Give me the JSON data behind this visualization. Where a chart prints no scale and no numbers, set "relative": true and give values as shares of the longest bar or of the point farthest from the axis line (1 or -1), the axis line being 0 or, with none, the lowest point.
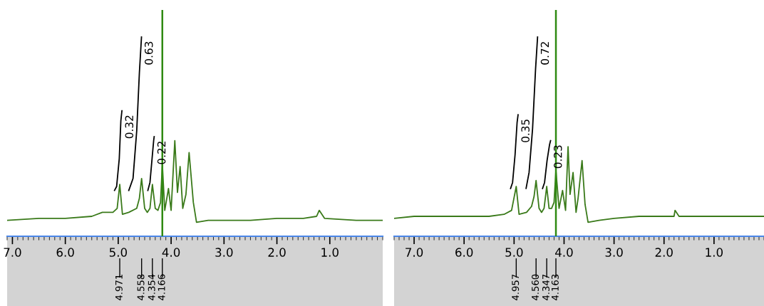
{
  "chart_data": [
    {
      "type": "line",
      "relative": true,
      "xlim": [
        7.1,
        0.0
      ],
      "xticks": [
        {
          "value": 7,
          "label": "7.0"
        },
        {
          "value": 6,
          "label": "6.0"
        },
        {
          "value": 5,
          "label": "5.0"
        },
        {
          "value": 4,
          "label": "4.0"
        },
        {
          "value": 3,
          "label": "3.0"
        },
        {
          "value": 2,
          "label": "2.0"
        },
        {
          "value": 1,
          "label": "1.0"
        }
      ],
      "tick_labels": "x",
      "grid": false,
      "legend": false,
      "ref_lines": [
        {
          "axis": "x",
          "value": 4.166,
          "color": "#2f8a12"
        }
      ],
      "series": [
        {
          "color": "#3a7a1a",
          "x": [
            7.1,
            6.5,
            6.0,
            5.5,
            5.3,
            5.1,
            5.02,
            4.971,
            4.92,
            4.8,
            4.65,
            4.6,
            4.558,
            4.5,
            4.45,
            4.4,
            4.354,
            4.3,
            4.25,
            4.2,
            4.166,
            4.12,
            4.05,
            4.0,
            3.93,
            3.88,
            3.83,
            3.78,
            3.72,
            3.66,
            3.58,
            3.52,
            3.3,
            3.0,
            2.5,
            2.0,
            1.5,
            1.25,
            1.2,
            1.1,
            0.5,
            0.0
          ],
          "values": [
            0.08,
            0.09,
            0.09,
            0.1,
            0.12,
            0.12,
            0.14,
            0.26,
            0.11,
            0.12,
            0.14,
            0.19,
            0.29,
            0.14,
            0.12,
            0.14,
            0.26,
            0.14,
            0.13,
            0.17,
            0.36,
            0.13,
            0.24,
            0.13,
            0.48,
            0.22,
            0.35,
            0.14,
            0.21,
            0.42,
            0.17,
            0.07,
            0.08,
            0.08,
            0.08,
            0.09,
            0.09,
            0.1,
            0.13,
            0.09,
            0.08,
            0.08
          ]
        },
        {
          "color": "#000000",
          "x": [
            5.07,
            5.03,
            4.98,
            4.95,
            4.93
          ],
          "values": [
            0.23,
            0.25,
            0.39,
            0.58,
            0.63
          ]
        },
        {
          "color": "#000000",
          "x": [
            4.8,
            4.72,
            4.65,
            4.6,
            4.56
          ],
          "values": [
            0.23,
            0.29,
            0.53,
            0.82,
            1.0
          ]
        },
        {
          "color": "#000000",
          "x": [
            4.44,
            4.4,
            4.36,
            4.33,
            4.32
          ],
          "values": [
            0.23,
            0.27,
            0.39,
            0.48,
            0.5
          ]
        }
      ],
      "annotations": [
        "0.32",
        "0.63",
        "0.22",
        {
          "text": "4.971",
          "x": 4.971
        },
        {
          "text": "4.558",
          "x": 4.558
        },
        {
          "text": "4.354",
          "x": 4.354
        },
        {
          "text": "4.166",
          "x": 4.166
        }
      ]
    },
    {
      "type": "line",
      "relative": true,
      "xlim": [
        7.4,
        0.0
      ],
      "xticks": [
        {
          "value": 7,
          "label": "7.0"
        },
        {
          "value": 6,
          "label": "6.0"
        },
        {
          "value": 5,
          "label": "5.0"
        },
        {
          "value": 4,
          "label": "4.0"
        },
        {
          "value": 3,
          "label": "3.0"
        },
        {
          "value": 2,
          "label": "2.0"
        },
        {
          "value": 1,
          "label": "1.0"
        }
      ],
      "tick_labels": "x",
      "grid": false,
      "legend": false,
      "ref_lines": [
        {
          "axis": "x",
          "value": 4.163,
          "color": "#2f8a12"
        }
      ],
      "series": [
        {
          "color": "#3a7a1a",
          "x": [
            7.4,
            7.0,
            6.5,
            6.0,
            5.5,
            5.2,
            5.05,
            4.957,
            4.9,
            4.75,
            4.65,
            4.6,
            4.56,
            4.5,
            4.45,
            4.4,
            4.347,
            4.3,
            4.25,
            4.2,
            4.163,
            4.1,
            4.03,
            3.97,
            3.92,
            3.88,
            3.82,
            3.76,
            3.72,
            3.64,
            3.58,
            3.52,
            3.3,
            3.0,
            2.5,
            2.0,
            1.8,
            1.78,
            1.7,
            1.2,
            0.5,
            0.0
          ],
          "values": [
            0.09,
            0.1,
            0.1,
            0.1,
            0.1,
            0.11,
            0.13,
            0.25,
            0.11,
            0.12,
            0.15,
            0.2,
            0.28,
            0.14,
            0.12,
            0.14,
            0.25,
            0.14,
            0.14,
            0.17,
            0.33,
            0.14,
            0.23,
            0.13,
            0.45,
            0.21,
            0.32,
            0.12,
            0.19,
            0.38,
            0.16,
            0.07,
            0.08,
            0.09,
            0.1,
            0.1,
            0.1,
            0.13,
            0.1,
            0.1,
            0.1,
            0.1
          ]
        },
        {
          "color": "#000000",
          "x": [
            5.07,
            5.03,
            4.98,
            4.94,
            4.92
          ],
          "values": [
            0.24,
            0.27,
            0.41,
            0.57,
            0.61
          ]
        },
        {
          "color": "#000000",
          "x": [
            4.76,
            4.7,
            4.63,
            4.57,
            4.53
          ],
          "values": [
            0.24,
            0.32,
            0.54,
            0.84,
            1.0
          ]
        },
        {
          "color": "#000000",
          "x": [
            4.43,
            4.39,
            4.34,
            4.29,
            4.27
          ],
          "values": [
            0.24,
            0.27,
            0.38,
            0.46,
            0.48
          ]
        }
      ],
      "annotations": [
        "0.35",
        "0.72",
        "0.23",
        {
          "text": "4.957",
          "x": 4.957
        },
        {
          "text": "4.560",
          "x": 4.56
        },
        {
          "text": "4.347",
          "x": 4.347
        },
        {
          "text": "4.163",
          "x": 4.163
        }
      ]
    }
  ]
}
